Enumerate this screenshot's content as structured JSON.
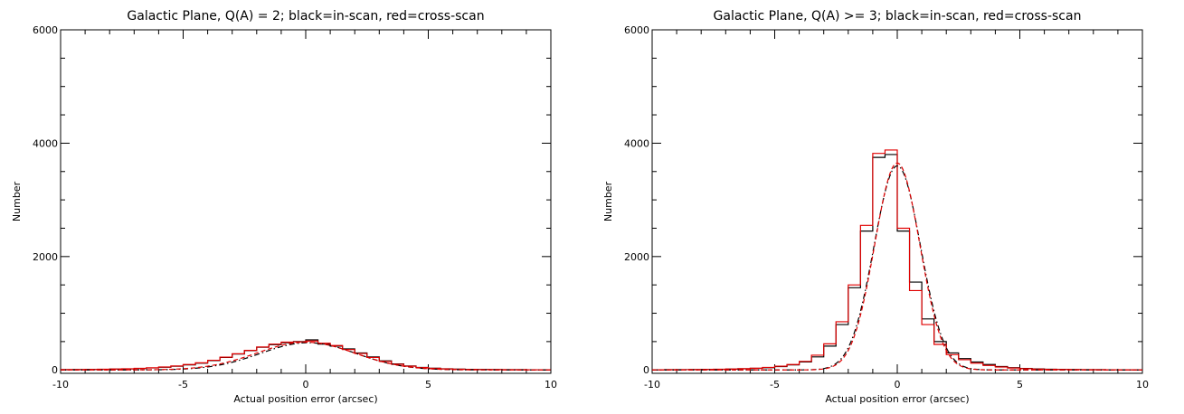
{
  "chart_data": [
    {
      "type": "step",
      "title": "Galactic Plane, Q(A) = 2; black=in-scan, red=cross-scan",
      "xlabel": "Actual position error (arcsec)",
      "ylabel": "Number",
      "xlim": [
        -10,
        10
      ],
      "ylim": [
        -60,
        6000
      ],
      "x_ticks": [
        -10,
        -5,
        0,
        5,
        10
      ],
      "y_ticks": [
        0,
        2000,
        4000,
        6000
      ],
      "bin_width": 0.5,
      "bin_centers": [
        -9.75,
        -9.25,
        -8.75,
        -8.25,
        -7.75,
        -7.25,
        -6.75,
        -6.25,
        -5.75,
        -5.25,
        -4.75,
        -4.25,
        -3.75,
        -3.25,
        -2.75,
        -2.25,
        -1.75,
        -1.25,
        -0.75,
        -0.25,
        0.25,
        0.75,
        1.25,
        1.75,
        2.25,
        2.75,
        3.25,
        3.75,
        4.25,
        4.75,
        5.25,
        5.75,
        6.25,
        6.75,
        7.25,
        7.75,
        8.25,
        8.75,
        9.25,
        9.75
      ],
      "series": [
        {
          "color": "#000000",
          "style": "histogram",
          "values": [
            5,
            6,
            8,
            10,
            14,
            18,
            25,
            35,
            48,
            65,
            90,
            120,
            165,
            220,
            280,
            340,
            400,
            445,
            480,
            500,
            530,
            455,
            420,
            370,
            300,
            230,
            160,
            105,
            70,
            45,
            30,
            20,
            14,
            10,
            8,
            6,
            5,
            4,
            3,
            3
          ]
        },
        {
          "color": "#e00000",
          "style": "histogram",
          "values": [
            6,
            7,
            9,
            12,
            16,
            20,
            28,
            38,
            52,
            70,
            95,
            125,
            170,
            225,
            285,
            345,
            405,
            455,
            490,
            495,
            510,
            470,
            430,
            360,
            290,
            220,
            150,
            100,
            65,
            42,
            28,
            18,
            12,
            9,
            7,
            6,
            5,
            4,
            3,
            3
          ]
        },
        {
          "color": "#000000",
          "style": "dash-dot",
          "fit": "gaussian",
          "amplitude": 480,
          "center": 0.1,
          "sigma": 1.95
        },
        {
          "color": "#e00000",
          "style": "dashed",
          "fit": "gaussian",
          "amplitude": 490,
          "center": 0.0,
          "sigma": 2.0
        }
      ]
    },
    {
      "type": "step",
      "title": "Galactic Plane, Q(A) >= 3; black=in-scan, red=cross-scan",
      "xlabel": "Actual position error (arcsec)",
      "ylabel": "Number",
      "xlim": [
        -10,
        10
      ],
      "ylim": [
        -60,
        6000
      ],
      "x_ticks": [
        -10,
        -5,
        0,
        5,
        10
      ],
      "y_ticks": [
        0,
        2000,
        4000,
        6000
      ],
      "bin_width": 0.5,
      "bin_centers": [
        -9.75,
        -9.25,
        -8.75,
        -8.25,
        -7.75,
        -7.25,
        -6.75,
        -6.25,
        -5.75,
        -5.25,
        -4.75,
        -4.25,
        -3.75,
        -3.25,
        -2.75,
        -2.25,
        -1.75,
        -1.25,
        -0.75,
        -0.25,
        0.25,
        0.75,
        1.25,
        1.75,
        2.25,
        2.75,
        3.25,
        3.75,
        4.25,
        4.75,
        5.25,
        5.75,
        6.25,
        6.75,
        7.25,
        7.75,
        8.25,
        8.75,
        9.25,
        9.75
      ],
      "series": [
        {
          "color": "#000000",
          "style": "histogram",
          "values": [
            3,
            4,
            5,
            6,
            8,
            10,
            14,
            20,
            28,
            40,
            60,
            90,
            140,
            230,
            420,
            800,
            1450,
            2450,
            3750,
            3800,
            2450,
            1550,
            900,
            500,
            300,
            200,
            140,
            95,
            60,
            40,
            26,
            18,
            12,
            9,
            7,
            5,
            4,
            3,
            3,
            2
          ]
        },
        {
          "color": "#e00000",
          "style": "histogram",
          "values": [
            3,
            4,
            5,
            7,
            9,
            12,
            16,
            22,
            30,
            45,
            65,
            95,
            150,
            260,
            460,
            850,
            1500,
            2550,
            3820,
            3880,
            2500,
            1400,
            800,
            450,
            270,
            180,
            120,
            80,
            52,
            34,
            22,
            15,
            10,
            8,
            6,
            5,
            4,
            3,
            3,
            2
          ]
        },
        {
          "color": "#000000",
          "style": "dash-dot",
          "fit": "gaussian",
          "amplitude": 3600,
          "center": 0.0,
          "sigma": 0.95
        },
        {
          "color": "#e00000",
          "style": "dashed",
          "fit": "gaussian",
          "amplitude": 3650,
          "center": 0.0,
          "sigma": 0.92
        }
      ]
    }
  ]
}
